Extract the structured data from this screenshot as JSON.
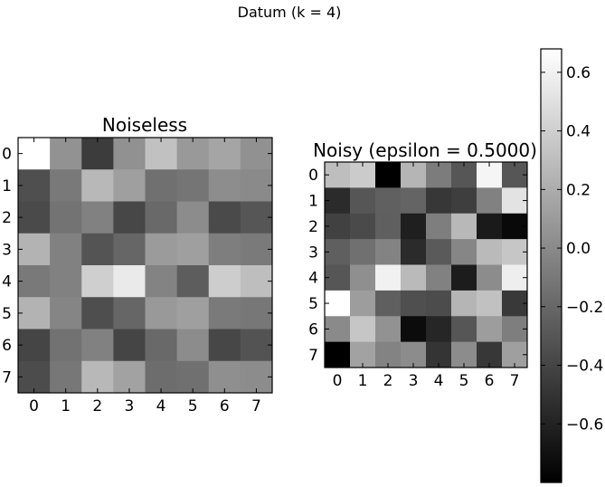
{
  "chart_data": {
    "type": "heatmap",
    "suptitle": "Datum (k = 4)",
    "colormap": "gray",
    "vmin": -0.8,
    "vmax": 0.68,
    "panels": [
      {
        "title": "Noiseless",
        "x_ticks": [
          "0",
          "1",
          "2",
          "3",
          "4",
          "5",
          "6",
          "7"
        ],
        "y_ticks": [
          "0",
          "1",
          "2",
          "3",
          "4",
          "5",
          "6",
          "7"
        ],
        "values": [
          [
            0.68,
            0.05,
            -0.45,
            0.04,
            0.32,
            0.09,
            0.16,
            0.04
          ],
          [
            -0.34,
            -0.1,
            0.27,
            0.12,
            -0.15,
            -0.12,
            0.02,
            0.0
          ],
          [
            -0.37,
            -0.13,
            -0.05,
            -0.39,
            -0.19,
            0.01,
            -0.37,
            -0.3
          ],
          [
            0.24,
            -0.05,
            -0.31,
            -0.21,
            0.1,
            0.12,
            -0.07,
            -0.09
          ],
          [
            -0.1,
            -0.05,
            0.4,
            0.56,
            -0.04,
            -0.26,
            0.39,
            0.3
          ],
          [
            0.24,
            -0.03,
            -0.35,
            -0.21,
            0.09,
            0.12,
            -0.09,
            -0.11
          ],
          [
            -0.4,
            -0.14,
            -0.05,
            -0.4,
            -0.19,
            0.01,
            -0.39,
            -0.32
          ],
          [
            -0.36,
            -0.11,
            0.27,
            0.14,
            -0.17,
            -0.15,
            0.03,
            0.01
          ]
        ]
      },
      {
        "title": "Noisy (epsilon = 0.5000)",
        "x_ticks": [
          "0",
          "1",
          "2",
          "3",
          "4",
          "5",
          "6",
          "7"
        ],
        "y_ticks": [
          "0",
          "1",
          "2",
          "3",
          "4",
          "5",
          "6",
          "7"
        ],
        "values": [
          [
            0.3,
            0.38,
            -0.8,
            0.25,
            -0.08,
            -0.3,
            0.62,
            -0.3
          ],
          [
            -0.55,
            -0.3,
            -0.24,
            -0.22,
            -0.48,
            -0.44,
            -0.05,
            0.52
          ],
          [
            -0.42,
            -0.37,
            -0.25,
            -0.62,
            -0.07,
            0.27,
            -0.65,
            -0.75
          ],
          [
            -0.25,
            -0.15,
            -0.04,
            -0.55,
            -0.28,
            -0.02,
            0.28,
            0.35
          ],
          [
            -0.3,
            0.03,
            0.6,
            0.28,
            -0.05,
            -0.64,
            0.01,
            0.58
          ],
          [
            0.68,
            0.11,
            -0.25,
            -0.34,
            -0.36,
            0.25,
            0.32,
            -0.47
          ],
          [
            0.0,
            0.35,
            0.05,
            -0.73,
            -0.58,
            -0.3,
            0.11,
            -0.07
          ],
          [
            -0.8,
            0.14,
            -0.04,
            0.01,
            -0.5,
            0.01,
            -0.48,
            0.12
          ]
        ]
      }
    ],
    "colorbar": {
      "ticks": [
        "0.6",
        "0.4",
        "0.2",
        "0.0",
        "−0.2",
        "−0.4",
        "−0.6"
      ],
      "tick_values": [
        0.6,
        0.4,
        0.2,
        0.0,
        -0.2,
        -0.4,
        -0.6
      ]
    }
  }
}
